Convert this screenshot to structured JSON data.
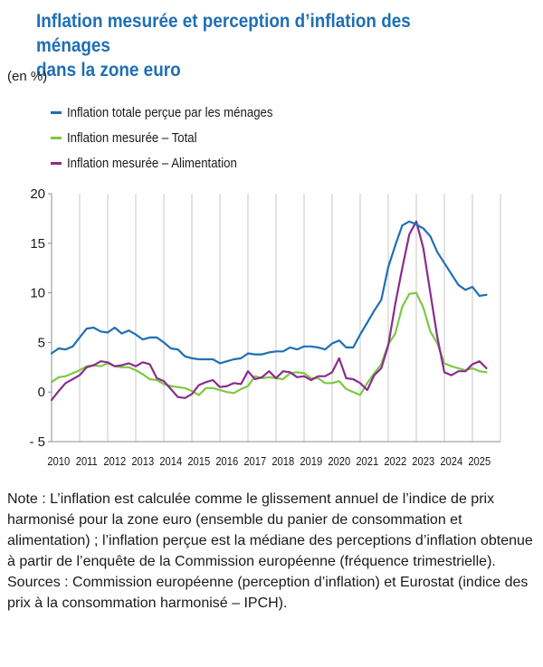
{
  "title_line1": "Inflation mesurée et perception d’inflation des ménages",
  "title_line2": "dans la zone euro",
  "unit": "(en %)",
  "legend": [
    {
      "label": "Inflation totale perçue par les ménages",
      "color": "#1f6fb4"
    },
    {
      "label": "Inflation mesurée – Total",
      "color": "#7ec843"
    },
    {
      "label": "Inflation mesurée – Alimentation",
      "color": "#8a2c8f"
    }
  ],
  "notes": [
    "Note : L’inflation est calculée comme le glissement annuel de l’indice de prix harmonisé pour la zone euro (ensemble du panier de consommation et alimentation) ; l’inflation perçue est la médiane des perceptions d’inflation obtenue",
    "à partir de l’enquête de la Commission européenne (fréquence trimestrielle).",
    "Sources : Commission européenne (perception d’inflation) et Eurostat (indice des prix à la consommation harmonisé – IPCH)."
  ],
  "chart_data": {
    "type": "line",
    "title": "Inflation mesurée et perception d’inflation des ménages dans la zone euro",
    "ylabel": "(en %)",
    "ylim": [
      -5,
      20
    ],
    "yticks": [
      20,
      15,
      10,
      5,
      0,
      -5
    ],
    "ytick_labels": [
      "20",
      "15",
      "10",
      "5",
      "0",
      "- 5"
    ],
    "xlim": [
      2009.75,
      2025.75
    ],
    "xtick_labels": [
      "2010",
      "2011",
      "2012",
      "2013",
      "2014",
      "2015",
      "2016",
      "2017",
      "2018",
      "2019",
      "2020",
      "2021",
      "2022",
      "2023",
      "2024",
      "2025"
    ],
    "grid": "vertical",
    "legend_position": "top-left",
    "series": [
      {
        "name": "Inflation totale perçue par les ménages",
        "color": "#1f6fb4",
        "x": [
          2009.75,
          2010.0,
          2010.25,
          2010.5,
          2010.75,
          2011.0,
          2011.25,
          2011.5,
          2011.75,
          2012.0,
          2012.25,
          2012.5,
          2012.75,
          2013.0,
          2013.25,
          2013.5,
          2013.75,
          2014.0,
          2014.25,
          2014.5,
          2014.75,
          2015.0,
          2015.25,
          2015.5,
          2015.75,
          2016.0,
          2016.25,
          2016.5,
          2016.75,
          2017.0,
          2017.25,
          2017.5,
          2017.75,
          2018.0,
          2018.25,
          2018.5,
          2018.75,
          2019.0,
          2019.25,
          2019.5,
          2019.75,
          2020.0,
          2020.25,
          2020.5,
          2020.75,
          2021.0,
          2021.25,
          2021.5,
          2021.75,
          2022.0,
          2022.25,
          2022.5,
          2022.75,
          2023.0,
          2023.25,
          2023.5,
          2023.75,
          2024.0,
          2024.25,
          2024.5,
          2024.75,
          2025.0,
          2025.25
        ],
        "y": [
          3.9,
          4.4,
          4.3,
          4.6,
          5.5,
          6.4,
          6.5,
          6.1,
          6.0,
          6.5,
          5.9,
          6.2,
          5.8,
          5.3,
          5.5,
          5.5,
          5.0,
          4.4,
          4.3,
          3.6,
          3.4,
          3.3,
          3.3,
          3.3,
          2.9,
          3.1,
          3.3,
          3.4,
          3.9,
          3.8,
          3.8,
          4.0,
          4.1,
          4.1,
          4.5,
          4.3,
          4.6,
          4.6,
          4.5,
          4.3,
          4.9,
          5.2,
          4.5,
          4.5,
          5.8,
          7.0,
          8.2,
          9.3,
          12.6,
          14.8,
          16.8,
          17.2,
          16.9,
          16.5,
          15.7,
          14.1,
          13.0,
          11.9,
          10.8,
          10.3,
          10.6,
          9.7,
          9.8
        ]
      },
      {
        "name": "Inflation mesurée – Total",
        "color": "#7ec843",
        "x": [
          2009.75,
          2010.0,
          2010.25,
          2010.5,
          2010.75,
          2011.0,
          2011.25,
          2011.5,
          2011.75,
          2012.0,
          2012.25,
          2012.5,
          2012.75,
          2013.0,
          2013.25,
          2013.5,
          2013.75,
          2014.0,
          2014.25,
          2014.5,
          2014.75,
          2015.0,
          2015.25,
          2015.5,
          2015.75,
          2016.0,
          2016.25,
          2016.5,
          2016.75,
          2017.0,
          2017.25,
          2017.5,
          2017.75,
          2018.0,
          2018.25,
          2018.5,
          2018.75,
          2019.0,
          2019.25,
          2019.5,
          2019.75,
          2020.0,
          2020.25,
          2020.5,
          2020.75,
          2021.0,
          2021.25,
          2021.5,
          2021.75,
          2022.0,
          2022.25,
          2022.5,
          2022.75,
          2023.0,
          2023.25,
          2023.5,
          2023.75,
          2024.0,
          2024.25,
          2024.5,
          2024.75,
          2025.0,
          2025.25
        ],
        "y": [
          1.0,
          1.5,
          1.6,
          1.9,
          2.2,
          2.6,
          2.7,
          2.6,
          2.9,
          2.6,
          2.5,
          2.5,
          2.2,
          1.8,
          1.3,
          1.2,
          0.8,
          0.6,
          0.5,
          0.4,
          0.1,
          -0.3,
          0.4,
          0.4,
          0.2,
          0.0,
          -0.1,
          0.3,
          0.6,
          1.6,
          1.4,
          1.5,
          1.4,
          1.3,
          1.9,
          2.0,
          1.9,
          1.4,
          1.4,
          0.9,
          0.9,
          1.1,
          0.3,
          0.0,
          -0.3,
          0.9,
          1.9,
          2.8,
          4.8,
          5.9,
          8.6,
          9.9,
          10.0,
          8.5,
          6.1,
          4.9,
          2.9,
          2.6,
          2.4,
          2.2,
          2.4,
          2.1,
          2.0
        ]
      },
      {
        "name": "Inflation mesurée – Alimentation",
        "color": "#8a2c8f",
        "x": [
          2009.75,
          2010.0,
          2010.25,
          2010.5,
          2010.75,
          2011.0,
          2011.25,
          2011.5,
          2011.75,
          2012.0,
          2012.25,
          2012.5,
          2012.75,
          2013.0,
          2013.25,
          2013.5,
          2013.75,
          2014.0,
          2014.25,
          2014.5,
          2014.75,
          2015.0,
          2015.25,
          2015.5,
          2015.75,
          2016.0,
          2016.25,
          2016.5,
          2016.75,
          2017.0,
          2017.25,
          2017.5,
          2017.75,
          2018.0,
          2018.25,
          2018.5,
          2018.75,
          2019.0,
          2019.25,
          2019.5,
          2019.75,
          2020.0,
          2020.25,
          2020.5,
          2020.75,
          2021.0,
          2021.25,
          2021.5,
          2021.75,
          2022.0,
          2022.25,
          2022.5,
          2022.75,
          2023.0,
          2023.25,
          2023.5,
          2023.75,
          2024.0,
          2024.25,
          2024.5,
          2024.75,
          2025.0,
          2025.25
        ],
        "y": [
          -0.8,
          0.1,
          0.9,
          1.3,
          1.7,
          2.5,
          2.7,
          3.1,
          3.0,
          2.6,
          2.7,
          2.9,
          2.6,
          3.0,
          2.8,
          1.4,
          1.1,
          0.3,
          -0.5,
          -0.6,
          -0.2,
          0.7,
          1.0,
          1.2,
          0.5,
          0.6,
          0.9,
          0.8,
          2.1,
          1.3,
          1.5,
          2.1,
          1.4,
          2.1,
          2.0,
          1.5,
          1.6,
          1.2,
          1.6,
          1.6,
          2.0,
          3.4,
          1.4,
          1.3,
          0.9,
          0.2,
          1.7,
          2.4,
          4.7,
          8.9,
          12.5,
          15.9,
          17.2,
          14.5,
          10.0,
          5.5,
          2.0,
          1.7,
          2.1,
          2.1,
          2.8,
          3.1,
          2.4
        ]
      }
    ]
  }
}
